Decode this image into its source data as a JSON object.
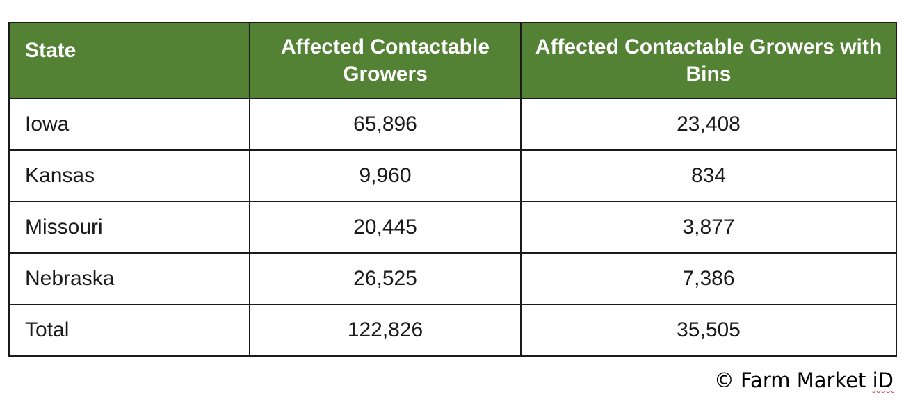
{
  "table": {
    "header": {
      "state": "State",
      "growers": "Affected Contactable Growers",
      "growers_bins": "Affected Contactable Growers with Bins"
    },
    "rows": [
      {
        "state": "Iowa",
        "growers": "65,896",
        "growers_bins": "23,408"
      },
      {
        "state": "Kansas",
        "growers": "9,960",
        "growers_bins": "834"
      },
      {
        "state": "Missouri",
        "growers": "20,445",
        "growers_bins": "3,877"
      },
      {
        "state": "Nebraska",
        "growers": "26,525",
        "growers_bins": "7,386"
      },
      {
        "state": "Total",
        "growers": "122,826",
        "growers_bins": "35,505"
      }
    ],
    "colors": {
      "header_background": "#548235",
      "header_text": "#ffffff",
      "border": "#1a1a1a"
    }
  },
  "copyright": {
    "prefix": "© Farm Market",
    "suffix": "iD"
  }
}
